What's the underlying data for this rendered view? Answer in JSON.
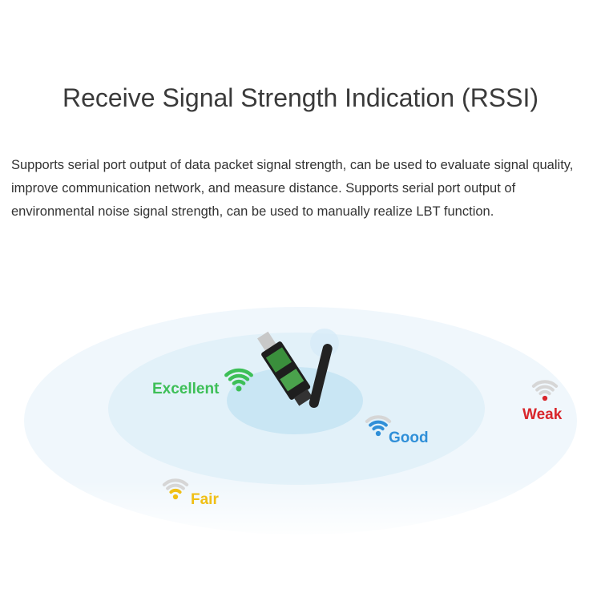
{
  "title": "Receive Signal Strength Indication (RSSI)",
  "description": "Supports serial port output of data packet signal strength, can be used to evaluate signal quality, improve communication network, and measure distance. Supports serial port output of environmental noise signal strength, can be used to manually realize LBT function.",
  "levels": [
    {
      "label": "Excellent",
      "color": "#3dbf57"
    },
    {
      "label": "Good",
      "color": "#2f8fd8"
    },
    {
      "label": "Weak",
      "color": "#d9262b"
    },
    {
      "label": "Fair",
      "color": "#f0bf16"
    }
  ]
}
